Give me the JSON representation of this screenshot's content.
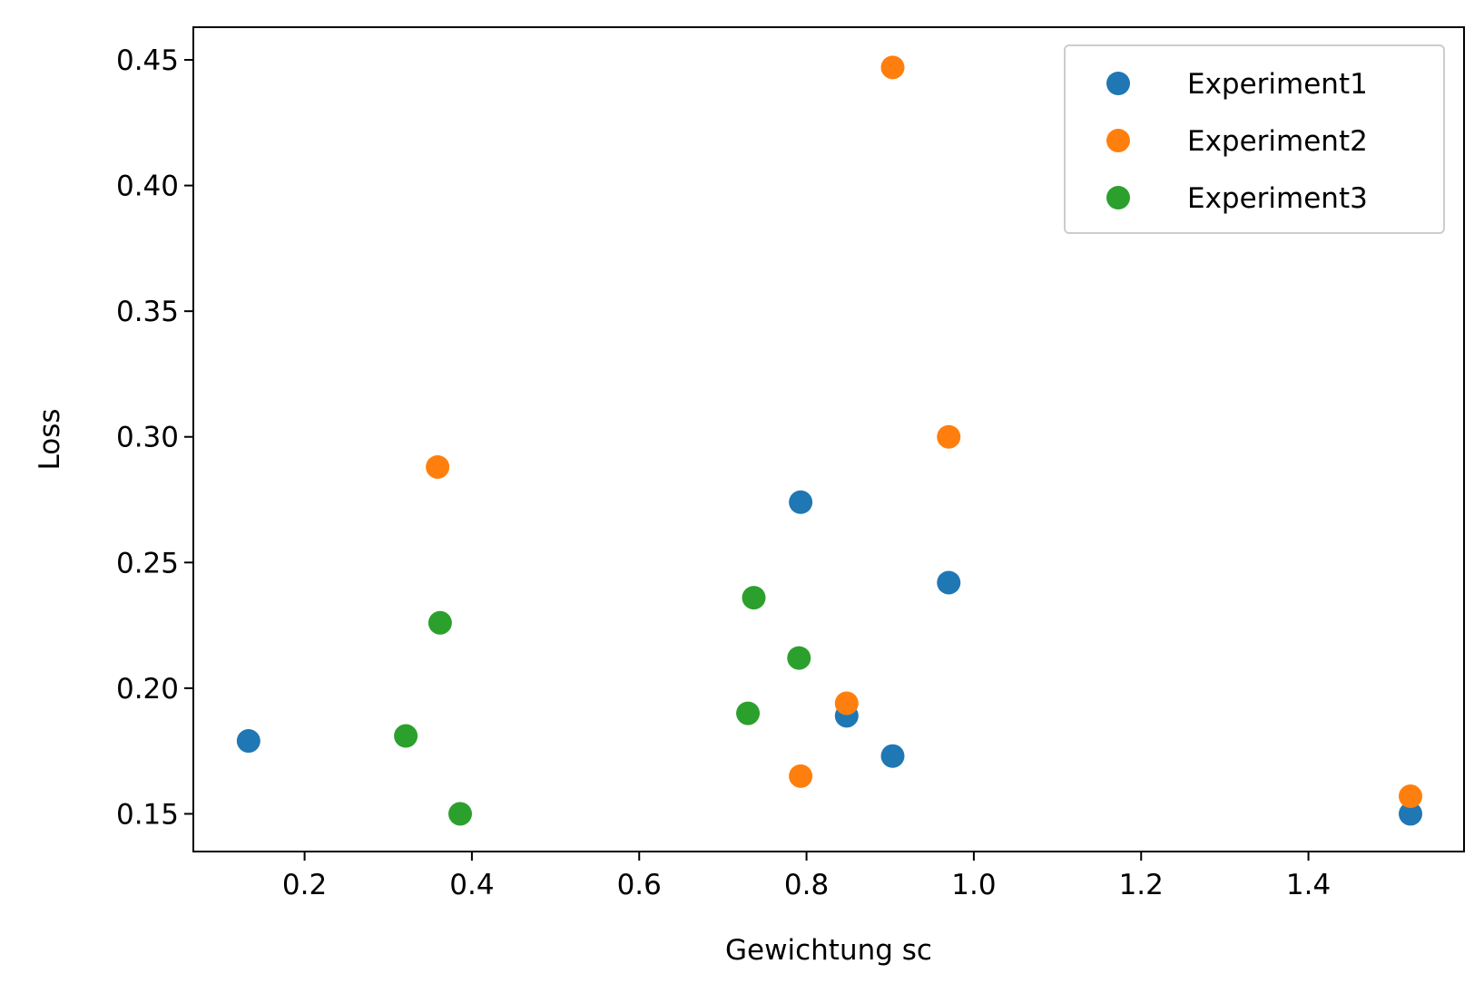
{
  "chart_data": {
    "type": "scatter",
    "title": "",
    "xlabel": "Gewichtung sc",
    "ylabel": "Loss",
    "xlim": [
      0.067,
      1.586
    ],
    "ylim": [
      0.135,
      0.463
    ],
    "xticks": [
      0.2,
      0.4,
      0.6,
      0.8,
      1.0,
      1.2,
      1.4
    ],
    "xtick_labels": [
      "0.2",
      "0.4",
      "0.6",
      "0.8",
      "1.0",
      "1.2",
      "1.4"
    ],
    "yticks": [
      0.15,
      0.2,
      0.25,
      0.3,
      0.35,
      0.4,
      0.45
    ],
    "ytick_labels": [
      "0.15",
      "0.20",
      "0.25",
      "0.30",
      "0.35",
      "0.40",
      "0.45"
    ],
    "grid": false,
    "legend_position": "top-right",
    "series": [
      {
        "name": "Experiment1",
        "color": "#1f77b4",
        "points": [
          {
            "x": 0.133,
            "y": 0.179
          },
          {
            "x": 0.793,
            "y": 0.274
          },
          {
            "x": 0.848,
            "y": 0.189
          },
          {
            "x": 0.903,
            "y": 0.173
          },
          {
            "x": 0.97,
            "y": 0.242
          },
          {
            "x": 1.522,
            "y": 0.15
          }
        ]
      },
      {
        "name": "Experiment2",
        "color": "#ff7f0e",
        "points": [
          {
            "x": 0.359,
            "y": 0.288
          },
          {
            "x": 0.793,
            "y": 0.165
          },
          {
            "x": 0.848,
            "y": 0.194
          },
          {
            "x": 0.903,
            "y": 0.447
          },
          {
            "x": 0.97,
            "y": 0.3
          },
          {
            "x": 1.522,
            "y": 0.157
          }
        ]
      },
      {
        "name": "Experiment3",
        "color": "#2ca02c",
        "points": [
          {
            "x": 0.321,
            "y": 0.181
          },
          {
            "x": 0.362,
            "y": 0.226
          },
          {
            "x": 0.386,
            "y": 0.15
          },
          {
            "x": 0.73,
            "y": 0.19
          },
          {
            "x": 0.737,
            "y": 0.236
          },
          {
            "x": 0.791,
            "y": 0.212
          }
        ]
      }
    ]
  }
}
